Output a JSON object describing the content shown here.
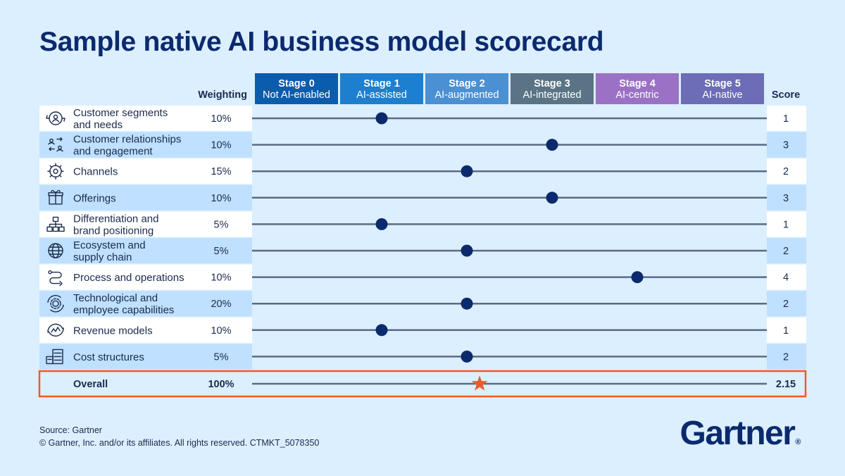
{
  "title": "Sample native AI business model scorecard",
  "chart_data": {
    "type": "scatter",
    "column_headers": {
      "weighting": "Weighting",
      "score": "Score"
    },
    "stages": [
      {
        "stage": "Stage 0",
        "label": "Not AI-enabled",
        "color": "#0b5cad"
      },
      {
        "stage": "Stage 1",
        "label": "AI-assisted",
        "color": "#1d7fcf"
      },
      {
        "stage": "Stage 2",
        "label": "AI-augmented",
        "color": "#4a90d3"
      },
      {
        "stage": "Stage 3",
        "label": "AI-integrated",
        "color": "#5a7485"
      },
      {
        "stage": "Stage 4",
        "label": "AI-centric",
        "color": "#9b71c6"
      },
      {
        "stage": "Stage 5",
        "label": "AI-native",
        "color": "#6c6db6"
      }
    ],
    "rows": [
      {
        "label": [
          "Customer segments",
          "and needs"
        ],
        "weighting": "10%",
        "score": 1,
        "score_label": "1",
        "icon": "customer-segments-icon"
      },
      {
        "label": [
          "Customer relationships",
          "and engagement"
        ],
        "weighting": "10%",
        "score": 3,
        "score_label": "3",
        "icon": "customer-relationships-icon"
      },
      {
        "label": [
          "Channels"
        ],
        "weighting": "15%",
        "score": 2,
        "score_label": "2",
        "icon": "channels-icon"
      },
      {
        "label": [
          "Offerings"
        ],
        "weighting": "10%",
        "score": 3,
        "score_label": "3",
        "icon": "gift-icon"
      },
      {
        "label": [
          "Differentiation and",
          "brand positioning"
        ],
        "weighting": "5%",
        "score": 1,
        "score_label": "1",
        "icon": "hierarchy-icon"
      },
      {
        "label": [
          "Ecosystem and",
          "supply chain"
        ],
        "weighting": "5%",
        "score": 2,
        "score_label": "2",
        "icon": "globe-icon"
      },
      {
        "label": [
          "Process and operations"
        ],
        "weighting": "10%",
        "score": 4,
        "score_label": "4",
        "icon": "process-path-icon"
      },
      {
        "label": [
          "Technological and",
          "employee capabilities"
        ],
        "weighting": "20%",
        "score": 2,
        "score_label": "2",
        "icon": "gear-refresh-icon"
      },
      {
        "label": [
          "Revenue models"
        ],
        "weighting": "10%",
        "score": 1,
        "score_label": "1",
        "icon": "revenue-chart-icon"
      },
      {
        "label": [
          "Cost structures"
        ],
        "weighting": "5%",
        "score": 2,
        "score_label": "2",
        "icon": "cost-server-icon"
      }
    ],
    "overall": {
      "label": "Overall",
      "weighting": "100%",
      "score": 2.15,
      "score_label": "2.15",
      "marker": "star"
    },
    "colors": {
      "dot": "#0b2a6e",
      "line": "#5b6a84",
      "star": "#f05a28",
      "highlight_border": "#f05a28",
      "row_white": "#ffffff",
      "row_blue": "#bfe0ff",
      "text": "#1b2a4e"
    },
    "xlim": [
      0,
      5
    ]
  },
  "footer": {
    "source": "Source: Gartner",
    "copyright": "© Gartner, Inc. and/or its affiliates. All rights reserved. CTMKT_5078350"
  },
  "logo": {
    "text": "Gartner",
    "mark": "®"
  }
}
